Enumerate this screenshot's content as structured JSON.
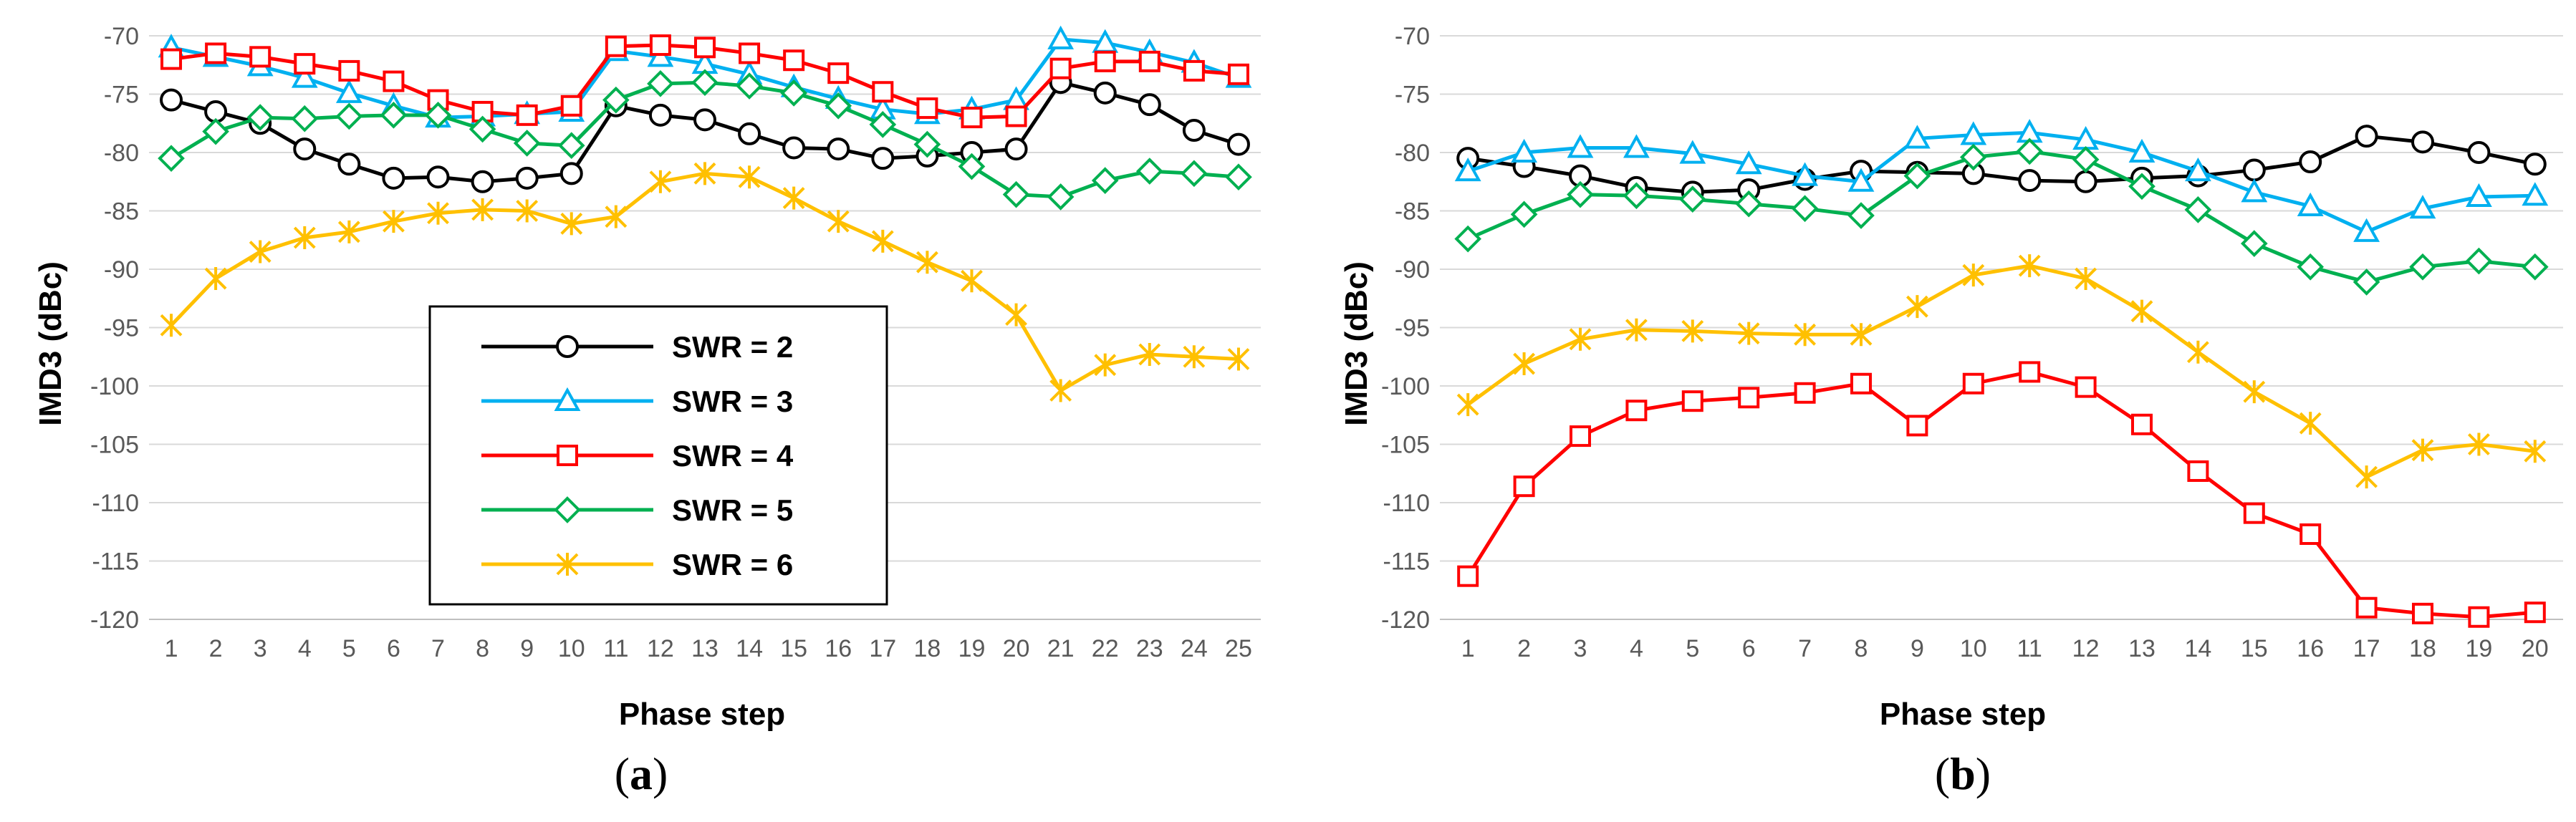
{
  "colors": {
    "SWR = 2": "#000000",
    "SWR = 3": "#00b0f0",
    "SWR = 4": "#ff0000",
    "SWR = 5": "#00b050",
    "SWR = 6": "#ffc000",
    "grid": "#d9d9d9"
  },
  "markers": {
    "SWR = 2": "circle",
    "SWR = 3": "triangle",
    "SWR = 4": "square",
    "SWR = 5": "diamond",
    "SWR = 6": "star"
  },
  "chart_data": [
    {
      "type": "line",
      "caption": "(a)",
      "xlabel": "Phase step",
      "ylabel": "IMD3 (dBc)",
      "ylim": [
        -120,
        -70
      ],
      "yticks": [
        -70,
        -75,
        -80,
        -85,
        -90,
        -95,
        -100,
        -105,
        -110,
        -115,
        -120
      ],
      "grid": true,
      "legend_position": "center",
      "x": [
        1,
        2,
        3,
        4,
        5,
        6,
        7,
        8,
        9,
        10,
        11,
        12,
        13,
        14,
        15,
        16,
        17,
        18,
        19,
        20,
        21,
        22,
        23,
        24,
        25
      ],
      "series": [
        {
          "name": "SWR = 2",
          "values": [
            -75.5,
            -76.5,
            -77.5,
            -79.7,
            -81.0,
            -82.2,
            -82.1,
            -82.5,
            -82.2,
            -81.8,
            -76.0,
            -76.8,
            -77.2,
            -78.4,
            -79.6,
            -79.7,
            -80.5,
            -80.3,
            -80.0,
            -79.7,
            -74.0,
            -74.9,
            -75.9,
            -78.1,
            -79.3
          ]
        },
        {
          "name": "SWR = 3",
          "values": [
            -71.0,
            -71.8,
            -72.6,
            -73.6,
            -74.9,
            -76.0,
            -77.0,
            -76.9,
            -76.7,
            -76.5,
            -71.3,
            -71.8,
            -72.4,
            -73.3,
            -74.4,
            -75.4,
            -76.3,
            -76.7,
            -76.3,
            -75.5,
            -70.3,
            -70.6,
            -71.4,
            -72.3,
            -73.6
          ]
        },
        {
          "name": "SWR = 4",
          "values": [
            -72.0,
            -71.5,
            -71.8,
            -72.4,
            -73.0,
            -73.9,
            -75.5,
            -76.5,
            -76.8,
            -76.0,
            -70.9,
            -70.8,
            -71.0,
            -71.5,
            -72.1,
            -73.2,
            -74.8,
            -76.2,
            -77.0,
            -76.9,
            -72.8,
            -72.2,
            -72.2,
            -73.0,
            -73.3
          ]
        },
        {
          "name": "SWR = 5",
          "values": [
            -80.5,
            -78.2,
            -77.0,
            -77.1,
            -76.9,
            -76.8,
            -76.8,
            -78.0,
            -79.2,
            -79.4,
            -75.5,
            -74.1,
            -74.0,
            -74.3,
            -74.9,
            -76.0,
            -77.6,
            -79.3,
            -81.2,
            -83.6,
            -83.8,
            -82.4,
            -81.6,
            -81.8,
            -82.1
          ]
        },
        {
          "name": "SWR = 6",
          "values": [
            -94.8,
            -90.8,
            -88.5,
            -87.3,
            -86.8,
            -85.9,
            -85.2,
            -84.9,
            -85.0,
            -86.1,
            -85.5,
            -82.5,
            -81.8,
            -82.1,
            -83.9,
            -85.9,
            -87.6,
            -89.4,
            -91.0,
            -93.9,
            -100.4,
            -98.2,
            -97.3,
            -97.5,
            -97.7
          ]
        }
      ]
    },
    {
      "type": "line",
      "caption": "(b)",
      "xlabel": "Phase step",
      "ylabel": "IMD3 (dBc)",
      "ylim": [
        -120,
        -70
      ],
      "yticks": [
        -70,
        -75,
        -80,
        -85,
        -90,
        -95,
        -100,
        -105,
        -110,
        -115,
        -120
      ],
      "grid": true,
      "x": [
        1,
        2,
        3,
        4,
        5,
        6,
        7,
        8,
        9,
        10,
        11,
        12,
        13,
        14,
        15,
        16,
        17,
        18,
        19,
        20
      ],
      "series": [
        {
          "name": "SWR = 2",
          "values": [
            -80.5,
            -81.2,
            -82.0,
            -83.0,
            -83.4,
            -83.2,
            -82.3,
            -81.6,
            -81.7,
            -81.8,
            -82.4,
            -82.5,
            -82.2,
            -82.0,
            -81.5,
            -80.8,
            -78.6,
            -79.1,
            -80.0,
            -81.0
          ]
        },
        {
          "name": "SWR = 3",
          "values": [
            -81.6,
            -80.0,
            -79.6,
            -79.6,
            -80.1,
            -81.0,
            -82.0,
            -82.5,
            -78.8,
            -78.5,
            -78.3,
            -78.9,
            -80.0,
            -81.6,
            -83.4,
            -84.6,
            -86.8,
            -84.8,
            -83.8,
            -83.7
          ]
        },
        {
          "name": "SWR = 4",
          "values": [
            -116.3,
            -108.6,
            -104.3,
            -102.1,
            -101.3,
            -101.0,
            -100.6,
            -99.8,
            -103.4,
            -99.8,
            -98.8,
            -100.1,
            -103.3,
            -107.3,
            -110.9,
            -112.7,
            -119.0,
            -119.5,
            -119.8,
            -119.4
          ]
        },
        {
          "name": "SWR = 5",
          "values": [
            -87.4,
            -85.3,
            -83.6,
            -83.7,
            -84.0,
            -84.4,
            -84.8,
            -85.4,
            -82.0,
            -80.4,
            -79.9,
            -80.6,
            -82.9,
            -84.9,
            -87.8,
            -89.8,
            -91.1,
            -89.8,
            -89.3,
            -89.8
          ]
        },
        {
          "name": "SWR = 6",
          "values": [
            -101.6,
            -98.1,
            -96.0,
            -95.2,
            -95.3,
            -95.5,
            -95.6,
            -95.6,
            -93.2,
            -90.5,
            -89.7,
            -90.8,
            -93.6,
            -97.1,
            -100.5,
            -103.2,
            -107.8,
            -105.5,
            -105.0,
            -105.6
          ]
        }
      ]
    }
  ]
}
